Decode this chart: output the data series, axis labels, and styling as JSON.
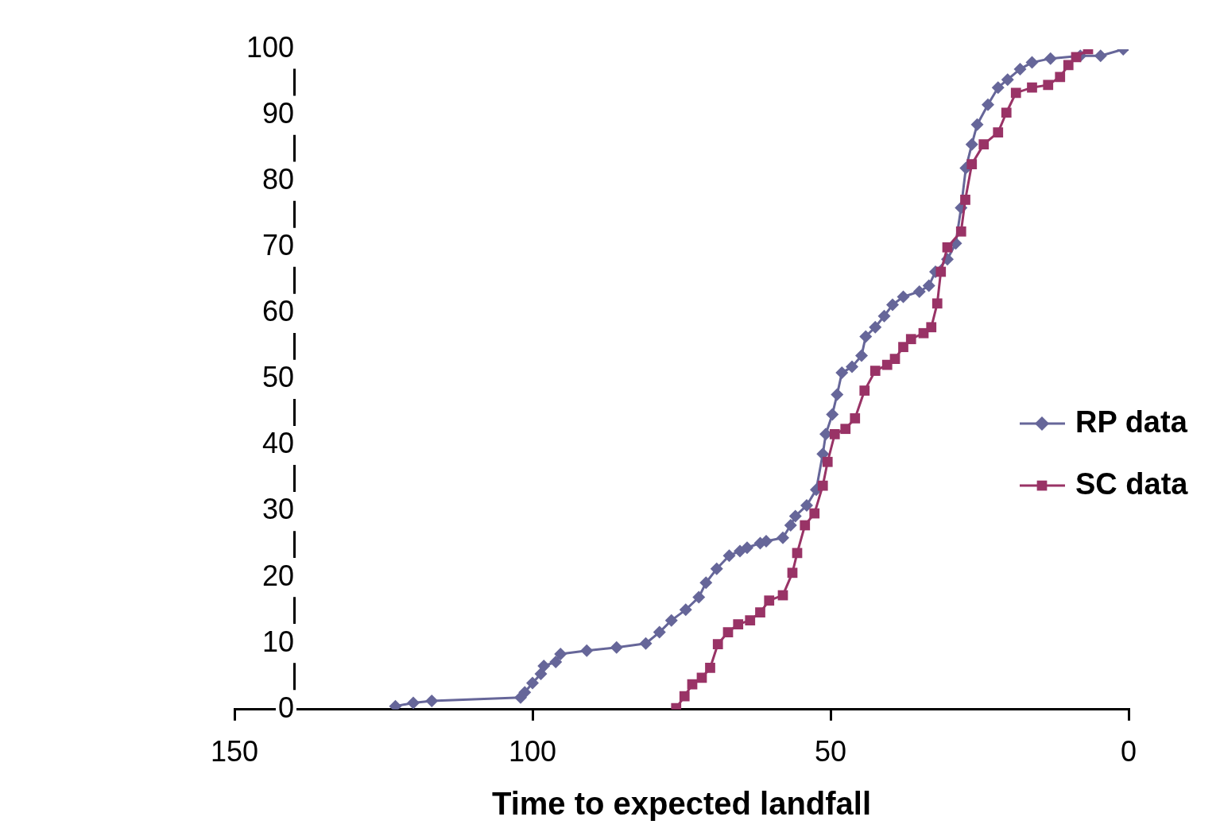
{
  "chart_data": {
    "type": "line",
    "xlabel": "Time to expected landfall",
    "xlim": [
      150,
      0
    ],
    "xticks": [
      150,
      100,
      50,
      0
    ],
    "ylim": [
      0,
      100
    ],
    "yticks": [
      0,
      10,
      20,
      30,
      40,
      50,
      60,
      70,
      80,
      90,
      100
    ],
    "grid": false,
    "legend": "right",
    "line_style": "solid",
    "series": [
      {
        "name": "RP data",
        "color": "#666699",
        "marker": "diamond",
        "x": [
          123,
          120,
          116.9,
          102,
          101.3,
          100,
          98.6,
          98.1,
          96.1,
          95.3,
          90.9,
          85.9,
          81,
          78.7,
          76.7,
          74.3,
          72.1,
          70.9,
          69.1,
          67,
          65.2,
          64,
          61.8,
          60.8,
          58,
          56.7,
          55.9,
          54,
          52.4,
          51.3,
          50.8,
          49.7,
          48.9,
          48.1,
          46.4,
          44.8,
          44.1,
          42.5,
          41,
          39.6,
          37.8,
          35.1,
          33.5,
          32.4,
          30.4,
          29,
          28.1,
          27.3,
          26.3,
          25.4,
          23.6,
          21.9,
          20.3,
          18.2,
          16.2,
          13.1,
          8.1,
          4.7,
          0.9
        ],
        "values": [
          0.5,
          1,
          1.3,
          1.8,
          2.6,
          4,
          5.4,
          6.6,
          7.2,
          8.4,
          8.9,
          9.4,
          10,
          11.7,
          13.5,
          15.1,
          17,
          19.2,
          21.3,
          23.3,
          24,
          24.5,
          25.2,
          25.5,
          26,
          27.9,
          29.3,
          30.9,
          33.3,
          38.7,
          41.7,
          44.7,
          47.7,
          51,
          51.9,
          53.6,
          56.5,
          57.9,
          59.6,
          61.3,
          62.5,
          63.3,
          64.2,
          66.3,
          68.2,
          70.6,
          76,
          82,
          85.6,
          88.6,
          91.6,
          94.2,
          95.4,
          97,
          98,
          98.6,
          99,
          99,
          100
        ]
      },
      {
        "name": "SC data",
        "color": "#993366",
        "marker": "square",
        "x": [
          75.9,
          74.5,
          73.2,
          71.6,
          70.2,
          68.9,
          67.2,
          65.5,
          63.5,
          61.8,
          60.3,
          58,
          56.4,
          55.6,
          54.3,
          52.7,
          51.3,
          50.5,
          49.3,
          47.5,
          45.9,
          44.3,
          42.5,
          40.5,
          39.2,
          37.8,
          36.5,
          34.4,
          33.1,
          32.1,
          31.5,
          30.4,
          28.1,
          27.4,
          26.3,
          24.3,
          21.9,
          20.5,
          18.9,
          16.2,
          13.5,
          11.5,
          10.1,
          8.8,
          6.8
        ],
        "values": [
          0.2,
          2,
          3.8,
          4.8,
          6.3,
          9.9,
          11.7,
          12.9,
          13.5,
          14.7,
          16.5,
          17.3,
          20.7,
          23.7,
          27.9,
          29.7,
          33.9,
          37.5,
          41.7,
          42.5,
          44.1,
          48.3,
          51.3,
          52.2,
          53.1,
          54.9,
          56.1,
          57,
          57.9,
          61.5,
          66.3,
          70,
          72.4,
          77.2,
          82.6,
          85.6,
          87.4,
          90.4,
          93.4,
          94.2,
          94.6,
          95.8,
          97.6,
          98.8,
          100
        ]
      }
    ]
  }
}
